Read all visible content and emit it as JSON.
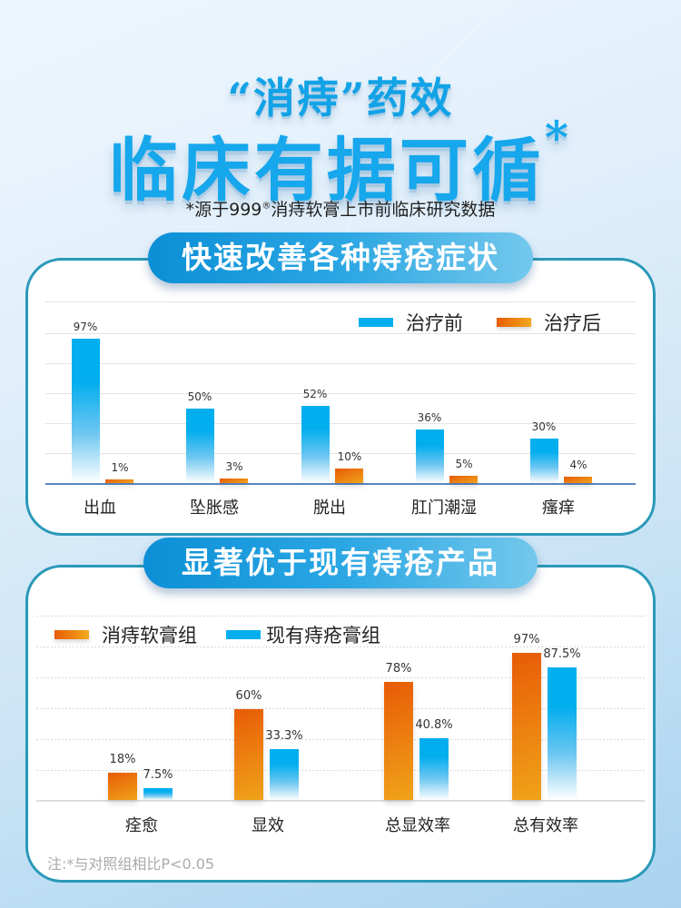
{
  "header": {
    "title_line1": "“消痔”药效",
    "title_line2": "临床有据可循",
    "title_star": "*",
    "source_prefix": "*源于999",
    "source_reg": "®",
    "source_suffix": "消痔软膏上市前临床研究数据"
  },
  "section1": {
    "pill_label": "快速改善各种痔疮症状",
    "legend": [
      {
        "label": "治疗前",
        "color": "#03aeef"
      },
      {
        "label": "治疗后",
        "color": "#ee7a0f"
      }
    ]
  },
  "section2": {
    "pill_label": "显著优于现有痔疮产品",
    "legend": [
      {
        "label": "消痔软膏组",
        "color": "#ee7a0f"
      },
      {
        "label": "现有痔疮膏组",
        "color": "#03aeef"
      }
    ]
  },
  "footnote": "注:*与对照组相比P<0.05",
  "colors": {
    "blue": "#03aeef",
    "orange": "#ee7a0f",
    "border": "#2a99b8",
    "pill": "#1a9ad9"
  },
  "chart_data": [
    {
      "type": "bar",
      "title": "快速改善各种痔疮症状",
      "categories": [
        "出血",
        "坠胀感",
        "脱出",
        "肛门潮湿",
        "瘙痒"
      ],
      "series": [
        {
          "name": "治疗前",
          "values": [
            97,
            50,
            52,
            36,
            30
          ],
          "labels": [
            "97%",
            "50%",
            "52%",
            "36%",
            "30%"
          ]
        },
        {
          "name": "治疗后",
          "values": [
            1,
            3,
            10,
            5,
            4
          ],
          "labels": [
            "1%",
            "3%",
            "10%",
            "5%",
            "4%"
          ]
        }
      ],
      "xlabel": "",
      "ylabel": "",
      "ylim": [
        0,
        100
      ],
      "grid": true,
      "legend_position": "top-right"
    },
    {
      "type": "bar",
      "title": "显著优于现有痔疮产品",
      "categories": [
        "痊愈",
        "显效",
        "总显效率",
        "总有效率"
      ],
      "series": [
        {
          "name": "消痔软膏组",
          "values": [
            18,
            60,
            78,
            97
          ],
          "labels": [
            "18%",
            "60%",
            "78%",
            "97%"
          ]
        },
        {
          "name": "现有痔疮膏组",
          "values": [
            7.5,
            33.3,
            40.8,
            87.5
          ],
          "labels": [
            "7.5%",
            "33.3%",
            "40.8%",
            "87.5%"
          ]
        }
      ],
      "xlabel": "",
      "ylabel": "",
      "ylim": [
        0,
        100
      ],
      "grid": true,
      "legend_position": "top-left",
      "note": "注:*与对照组相比P<0.05"
    }
  ]
}
